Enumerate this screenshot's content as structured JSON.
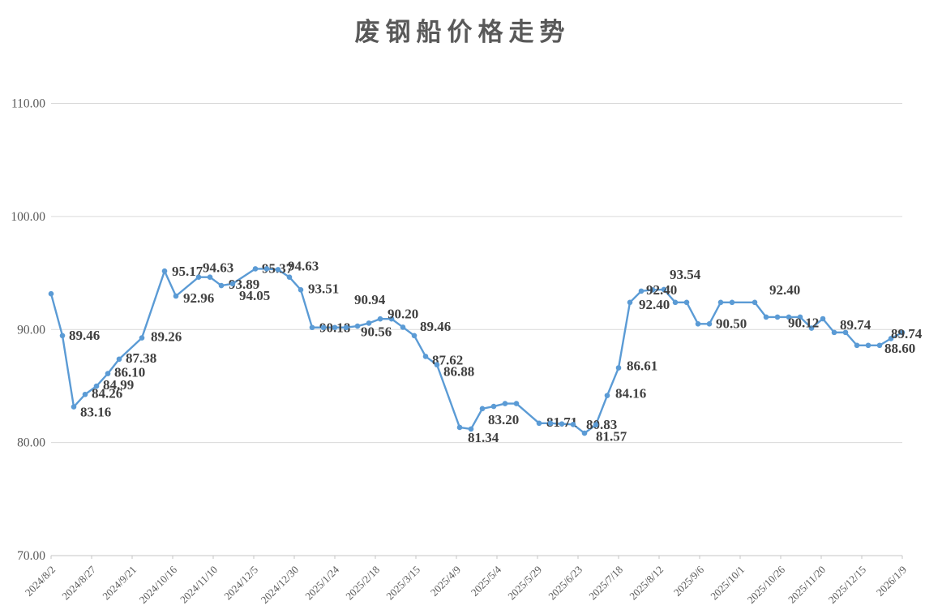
{
  "chart_data": {
    "type": "line",
    "title": "废钢船价格走势",
    "xlabel": "",
    "ylabel": "",
    "x_type": "date",
    "x_start": "2024/8/2",
    "x_end": "2026/1/9",
    "ylim": [
      70,
      110
    ],
    "grid": true,
    "legend": false,
    "colors": {
      "line": "#5B9BD5",
      "marker": "#5B9BD5",
      "data_label": "#404040",
      "axis_label": "#595959",
      "gridline": "#D9D9D9",
      "axis_line": "#C6C6C6",
      "title": "#595959",
      "background": "#ffffff"
    },
    "y_ticks": [
      {
        "label": "110.00",
        "value": 110
      },
      {
        "label": "100.00",
        "value": 100
      },
      {
        "label": "90.00",
        "value": 90
      },
      {
        "label": "80.00",
        "value": 80
      },
      {
        "label": "70.00",
        "value": 70
      }
    ],
    "x_tick_labels": [
      "2024/8/2",
      "2024/8/27",
      "2024/9/21",
      "2024/10/16",
      "2024/11/10",
      "2024/12/5",
      "2024/12/30",
      "2025/1/24",
      "2025/2/18",
      "2025/3/15",
      "2025/4/9",
      "2025/5/4",
      "2025/5/29",
      "2025/6/23",
      "2025/7/18",
      "2025/8/12",
      "2025/9/6",
      "2025/10/1",
      "2025/10/26",
      "2025/11/20",
      "2025/12/15",
      "2026/1/9"
    ],
    "series": [
      {
        "name": "废钢船价格",
        "points": [
          {
            "d": "2024/8/2",
            "v": 93.16
          },
          {
            "d": "2024/8/9",
            "v": 89.46,
            "t": "89.46",
            "dx": 8,
            "dy": 5
          },
          {
            "d": "2024/8/16",
            "v": 83.16,
            "t": "83.16",
            "dx": 8,
            "dy": 12
          },
          {
            "d": "2024/8/23",
            "v": 84.26,
            "t": "84.26",
            "dx": 8,
            "dy": 4
          },
          {
            "d": "2024/8/30",
            "v": 84.99,
            "t": "84.99",
            "dx": 8,
            "dy": 4
          },
          {
            "d": "2024/9/6",
            "v": 86.1,
            "t": "86.10",
            "dx": 8,
            "dy": 4
          },
          {
            "d": "2024/9/13",
            "v": 87.38,
            "t": "87.38",
            "dx": 8,
            "dy": 4
          },
          {
            "d": "2024/9/27",
            "v": 89.26,
            "t": "89.26",
            "dx": 11,
            "dy": 4
          },
          {
            "d": "2024/10/11",
            "v": 95.17,
            "t": "95.17",
            "dx": 9,
            "dy": 6
          },
          {
            "d": "2024/10/18",
            "v": 92.96,
            "t": "92.96",
            "dx": 9,
            "dy": 8
          },
          {
            "d": "2024/11/1",
            "v": 94.63,
            "t": "94.63",
            "dx": 5,
            "dy": -6
          },
          {
            "d": "2024/11/8",
            "v": 94.63
          },
          {
            "d": "2024/11/15",
            "v": 93.89,
            "t": "93.89",
            "dx": 9,
            "dy": 4
          },
          {
            "d": "2024/11/22",
            "v": 94.05,
            "t": "94.05",
            "dx": 8,
            "dy": 20
          },
          {
            "d": "2024/12/6",
            "v": 95.37,
            "t": "95.37",
            "dx": 8,
            "dy": 5
          },
          {
            "d": "2024/12/13",
            "v": 95.37
          },
          {
            "d": "2024/12/20",
            "v": 95.3
          },
          {
            "d": "2024/12/27",
            "v": 94.63,
            "t": "94.63",
            "dx": -2,
            "dy": -8
          },
          {
            "d": "2025/1/3",
            "v": 93.51,
            "t": "93.51",
            "dx": 9,
            "dy": 4
          },
          {
            "d": "2025/1/10",
            "v": 90.18,
            "t": "90.18",
            "dx": 9,
            "dy": 6
          },
          {
            "d": "2025/1/17",
            "v": 90.18
          },
          {
            "d": "2025/1/24",
            "v": 90.18
          },
          {
            "d": "2025/1/31",
            "v": 90.18
          },
          {
            "d": "2025/2/7",
            "v": 90.3
          },
          {
            "d": "2025/2/14",
            "v": 90.56,
            "t": "90.56",
            "dx": -10,
            "dy": 16
          },
          {
            "d": "2025/2/21",
            "v": 90.94,
            "t": "90.94",
            "dx": -32,
            "dy": -18
          },
          {
            "d": "2025/2/28",
            "v": 90.94
          },
          {
            "d": "2025/3/7",
            "v": 90.2,
            "t": "90.20",
            "dx": -19,
            "dy": -11
          },
          {
            "d": "2025/3/14",
            "v": 89.46,
            "t": "89.46",
            "dx": 7,
            "dy": -6
          },
          {
            "d": "2025/3/21",
            "v": 87.62,
            "t": "87.62",
            "dx": 8,
            "dy": 10
          },
          {
            "d": "2025/3/28",
            "v": 86.88,
            "t": "86.88",
            "dx": 8,
            "dy": 14
          },
          {
            "d": "2025/4/11",
            "v": 81.34,
            "t": "81.34",
            "dx": 10,
            "dy": 18
          },
          {
            "d": "2025/4/18",
            "v": 81.2
          },
          {
            "d": "2025/4/25",
            "v": 83.0
          },
          {
            "d": "2025/5/2",
            "v": 83.2,
            "t": "83.20",
            "dx": -7,
            "dy": 22
          },
          {
            "d": "2025/5/9",
            "v": 83.45
          },
          {
            "d": "2025/5/16",
            "v": 83.45
          },
          {
            "d": "2025/5/30",
            "v": 81.71,
            "t": "81.71",
            "dx": 9,
            "dy": 4
          },
          {
            "d": "2025/6/6",
            "v": 81.71
          },
          {
            "d": "2025/6/13",
            "v": 81.65
          },
          {
            "d": "2025/6/20",
            "v": 81.6
          },
          {
            "d": "2025/6/27",
            "v": 80.83,
            "t": "80.83",
            "dx": 2,
            "dy": -5
          },
          {
            "d": "2025/7/4",
            "v": 81.57,
            "t": "81.57",
            "dx": 0,
            "dy": 20
          },
          {
            "d": "2025/7/11",
            "v": 84.16,
            "t": "84.16",
            "dx": 10,
            "dy": 3
          },
          {
            "d": "2025/7/18",
            "v": 86.61,
            "t": "86.61",
            "dx": 10,
            "dy": 3
          },
          {
            "d": "2025/7/25",
            "v": 92.4,
            "t": "92.40",
            "dx": 11,
            "dy": 8
          },
          {
            "d": "2025/8/1",
            "v": 93.4
          },
          {
            "d": "2025/8/8",
            "v": 93.5
          },
          {
            "d": "2025/8/15",
            "v": 93.54,
            "t": "93.54",
            "dx": 7,
            "dy": -13
          },
          {
            "d": "2025/8/22",
            "v": 92.4,
            "t": "92.40",
            "dx": -36,
            "dy": -10
          },
          {
            "d": "2025/8/29",
            "v": 92.4
          },
          {
            "d": "2025/9/5",
            "v": 90.5
          },
          {
            "d": "2025/9/12",
            "v": 90.5,
            "t": "90.50",
            "dx": 8,
            "dy": 5
          },
          {
            "d": "2025/9/19",
            "v": 92.4
          },
          {
            "d": "2025/9/26",
            "v": 92.4
          },
          {
            "d": "2025/10/10",
            "v": 92.4,
            "t": "92.40",
            "dx": 18,
            "dy": -10
          },
          {
            "d": "2025/10/17",
            "v": 91.1
          },
          {
            "d": "2025/10/24",
            "v": 91.1
          },
          {
            "d": "2025/10/31",
            "v": 91.1
          },
          {
            "d": "2025/11/7",
            "v": 91.1
          },
          {
            "d": "2025/11/14",
            "v": 90.12,
            "t": "90.12",
            "dx": -29,
            "dy": -1
          },
          {
            "d": "2025/11/21",
            "v": 90.95
          },
          {
            "d": "2025/11/28",
            "v": 89.74,
            "t": "89.74",
            "dx": 7,
            "dy": -4
          },
          {
            "d": "2025/12/5",
            "v": 89.74
          },
          {
            "d": "2025/12/12",
            "v": 88.6
          },
          {
            "d": "2025/12/19",
            "v": 88.6
          },
          {
            "d": "2025/12/26",
            "v": 88.6,
            "t": "88.60",
            "dx": 6,
            "dy": 9
          },
          {
            "d": "2026/1/2",
            "v": 89.2
          },
          {
            "d": "2026/1/9",
            "v": 89.74,
            "t": "89.74",
            "dx": -14,
            "dy": 7
          }
        ]
      }
    ]
  }
}
